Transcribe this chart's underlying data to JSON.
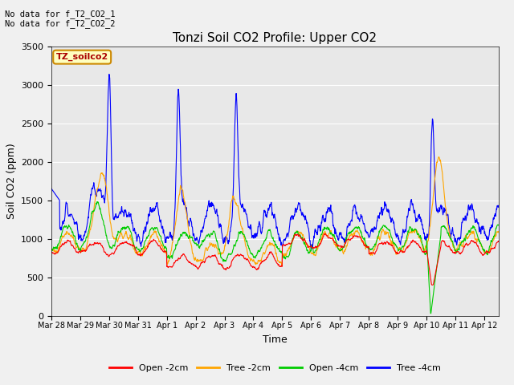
{
  "title": "Tonzi Soil CO2 Profile: Upper CO2",
  "xlabel": "Time",
  "ylabel": "Soil CO2 (ppm)",
  "ylim": [
    0,
    3500
  ],
  "legend_labels": [
    "Open -2cm",
    "Tree -2cm",
    "Open -4cm",
    "Tree -4cm"
  ],
  "legend_colors": [
    "#ff0000",
    "#ffa500",
    "#00cc00",
    "#0000ff"
  ],
  "annotation_lines": [
    "No data for f_T2_CO2_1",
    "No data for f_T2_CO2_2"
  ],
  "inset_label": "TZ_soilco2",
  "inset_label_color": "#aa0000",
  "tick_labels": [
    "Mar 28",
    "Mar 29",
    "Mar 30",
    "Mar 31",
    "Apr 1",
    "Apr 2",
    "Apr 3",
    "Apr 4",
    "Apr 5",
    "Apr 6",
    "Apr 7",
    "Apr 8",
    "Apr 9",
    "Apr 10",
    "Apr 11",
    "Apr 12"
  ],
  "yticks": [
    0,
    500,
    1000,
    1500,
    2000,
    2500,
    3000,
    3500
  ],
  "fig_facecolor": "#f0f0f0",
  "ax_facecolor": "#e8e8e8",
  "grid_color": "#ffffff",
  "n_points": 1488,
  "n_days": 15.5,
  "seed": 99
}
